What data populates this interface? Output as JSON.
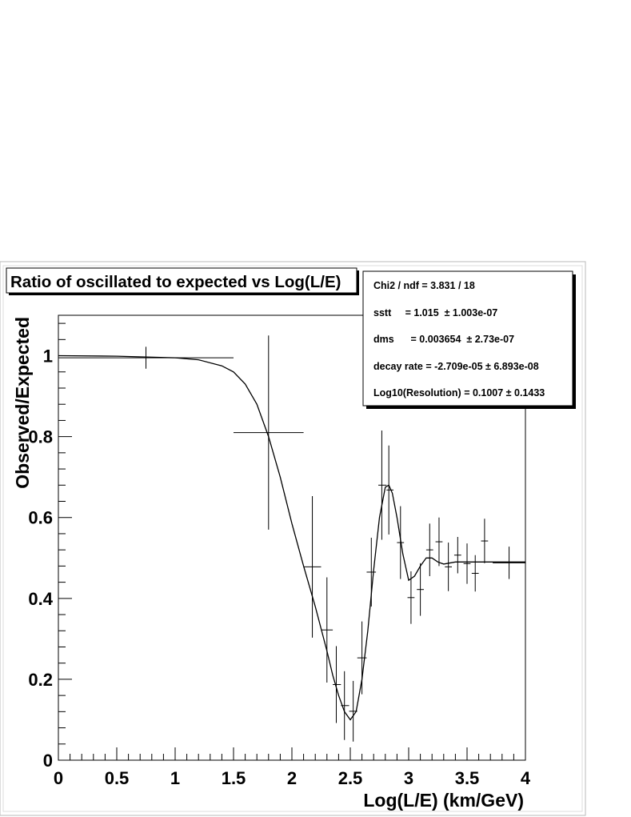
{
  "chart_data": {
    "type": "scatter",
    "title": "Ratio of oscillated to expected vs Log(L/E)",
    "xlabel": "Log(L/E) (km/GeV)",
    "ylabel": "Observed/Expected",
    "xlim": [
      0,
      4
    ],
    "ylim": [
      0,
      1.1
    ],
    "x_ticks": [
      "0",
      "0.5",
      "1",
      "1.5",
      "2",
      "2.5",
      "3",
      "3.5",
      "4"
    ],
    "y_ticks": [
      "0",
      "0.2",
      "0.4",
      "0.6",
      "0.8",
      "1"
    ],
    "grid": false,
    "stats_box": [
      "Chi2 / ndf = 3.831 / 18",
      "sstt     = 1.015  ± 1.003e-07",
      "dms      = 0.003654  ± 2.73e-07",
      "decay rate = -2.709e-05  ± 6.893e-08",
      "Log10(Resolution) = 0.1007  ± 0.1433"
    ],
    "points": [
      {
        "x": 0.75,
        "y": 0.995,
        "xlo": 0.0,
        "xhi": 1.5,
        "err": 0.027
      },
      {
        "x": 1.8,
        "y": 0.81,
        "xlo": 1.5,
        "xhi": 2.1,
        "err": 0.24
      },
      {
        "x": 2.175,
        "y": 0.478,
        "xlo": 2.1,
        "xhi": 2.25,
        "err": 0.175
      },
      {
        "x": 2.3,
        "y": 0.322,
        "xlo": 2.25,
        "xhi": 2.35,
        "err": 0.13
      },
      {
        "x": 2.38,
        "y": 0.187,
        "xlo": 2.35,
        "xhi": 2.42,
        "err": 0.095
      },
      {
        "x": 2.45,
        "y": 0.135,
        "xlo": 2.42,
        "xhi": 2.49,
        "err": 0.085
      },
      {
        "x": 2.525,
        "y": 0.121,
        "xlo": 2.49,
        "xhi": 2.56,
        "err": 0.075
      },
      {
        "x": 2.6,
        "y": 0.253,
        "xlo": 2.56,
        "xhi": 2.64,
        "err": 0.09
      },
      {
        "x": 2.68,
        "y": 0.465,
        "xlo": 2.64,
        "xhi": 2.72,
        "err": 0.085
      },
      {
        "x": 2.77,
        "y": 0.68,
        "xlo": 2.74,
        "xhi": 2.81,
        "err": 0.135
      },
      {
        "x": 2.83,
        "y": 0.668,
        "xlo": 2.81,
        "xhi": 2.87,
        "err": 0.11
      },
      {
        "x": 2.93,
        "y": 0.538,
        "xlo": 2.9,
        "xhi": 2.96,
        "err": 0.09
      },
      {
        "x": 3.02,
        "y": 0.402,
        "xlo": 2.99,
        "xhi": 3.05,
        "err": 0.065
      },
      {
        "x": 3.1,
        "y": 0.422,
        "xlo": 3.07,
        "xhi": 3.13,
        "err": 0.065
      },
      {
        "x": 3.18,
        "y": 0.52,
        "xlo": 3.15,
        "xhi": 3.21,
        "err": 0.065
      },
      {
        "x": 3.26,
        "y": 0.54,
        "xlo": 3.23,
        "xhi": 3.29,
        "err": 0.06
      },
      {
        "x": 3.34,
        "y": 0.478,
        "xlo": 3.31,
        "xhi": 3.37,
        "err": 0.06
      },
      {
        "x": 3.42,
        "y": 0.507,
        "xlo": 3.39,
        "xhi": 3.45,
        "err": 0.045
      },
      {
        "x": 3.5,
        "y": 0.486,
        "xlo": 3.47,
        "xhi": 3.53,
        "err": 0.05
      },
      {
        "x": 3.57,
        "y": 0.462,
        "xlo": 3.54,
        "xhi": 3.6,
        "err": 0.045
      },
      {
        "x": 3.65,
        "y": 0.542,
        "xlo": 3.62,
        "xhi": 3.68,
        "err": 0.055
      },
      {
        "x": 3.86,
        "y": 0.488,
        "xlo": 3.72,
        "xhi": 4.0,
        "err": 0.04
      }
    ],
    "fit_curve": {
      "x": [
        0,
        0.5,
        1.0,
        1.2,
        1.4,
        1.5,
        1.6,
        1.7,
        1.8,
        1.9,
        2.0,
        2.1,
        2.2,
        2.3,
        2.35,
        2.4,
        2.45,
        2.5,
        2.55,
        2.6,
        2.65,
        2.7,
        2.75,
        2.8,
        2.83,
        2.86,
        2.9,
        2.95,
        3.0,
        3.05,
        3.1,
        3.15,
        3.2,
        3.25,
        3.3,
        3.4,
        3.5,
        3.6,
        3.7,
        3.8,
        3.9,
        4.0
      ],
      "y": [
        1.0,
        0.999,
        0.995,
        0.99,
        0.975,
        0.96,
        0.93,
        0.88,
        0.8,
        0.7,
        0.585,
        0.48,
        0.38,
        0.27,
        0.21,
        0.16,
        0.12,
        0.1,
        0.12,
        0.2,
        0.32,
        0.47,
        0.6,
        0.675,
        0.68,
        0.66,
        0.6,
        0.51,
        0.445,
        0.455,
        0.48,
        0.5,
        0.5,
        0.49,
        0.485,
        0.49,
        0.49,
        0.49,
        0.49,
        0.49,
        0.49,
        0.49
      ]
    }
  }
}
